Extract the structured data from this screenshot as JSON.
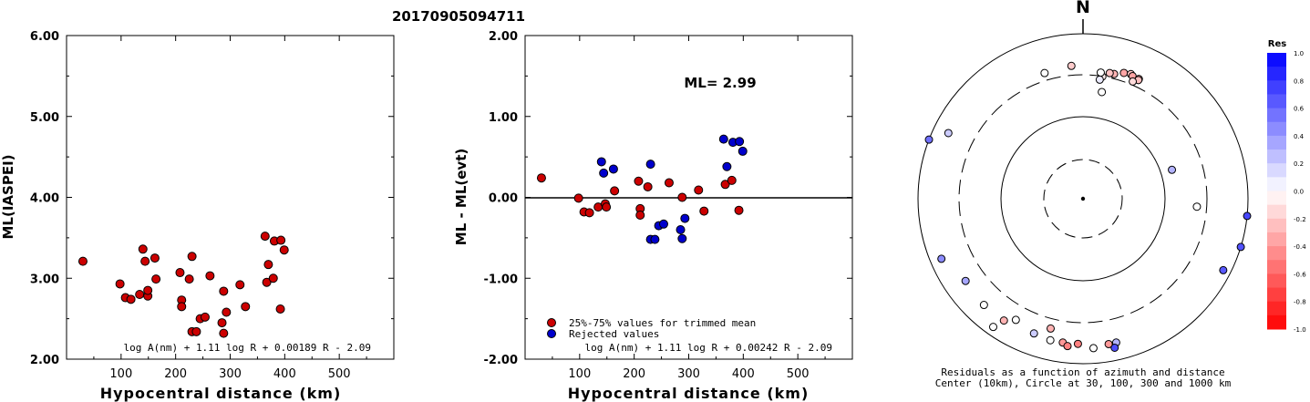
{
  "title": "20170905094711",
  "chart_data": [
    {
      "type": "scatter",
      "ylabel": "ML(IASPEI)",
      "xlabel": "Hypocentral distance (km)",
      "xlim": [
        0,
        600
      ],
      "ylim": [
        2.0,
        6.0
      ],
      "xticks": [
        "100",
        "200",
        "300",
        "400",
        "500"
      ],
      "yticks": [
        "2.00",
        "3.00",
        "4.00",
        "5.00",
        "6.00"
      ],
      "formula": "log A(nm) + 1.11 log R + 0.00189 R - 2.09",
      "points_color": "#cc0000",
      "points": [
        [
          30,
          3.21
        ],
        [
          98,
          2.93
        ],
        [
          108,
          2.76
        ],
        [
          118,
          2.74
        ],
        [
          134,
          2.8
        ],
        [
          140,
          3.36
        ],
        [
          144,
          3.21
        ],
        [
          149,
          2.78
        ],
        [
          149,
          2.85
        ],
        [
          162,
          3.25
        ],
        [
          164,
          2.99
        ],
        [
          208,
          3.07
        ],
        [
          211,
          2.73
        ],
        [
          211,
          2.65
        ],
        [
          225,
          2.99
        ],
        [
          230,
          3.27
        ],
        [
          230,
          2.34
        ],
        [
          238,
          2.34
        ],
        [
          245,
          2.5
        ],
        [
          254,
          2.52
        ],
        [
          263,
          3.03
        ],
        [
          285,
          2.45
        ],
        [
          288,
          2.84
        ],
        [
          288,
          2.32
        ],
        [
          293,
          2.58
        ],
        [
          318,
          2.92
        ],
        [
          328,
          2.65
        ],
        [
          364,
          3.52
        ],
        [
          367,
          2.95
        ],
        [
          370,
          3.17
        ],
        [
          379,
          3.0
        ],
        [
          381,
          3.46
        ],
        [
          392,
          2.62
        ],
        [
          393,
          3.47
        ],
        [
          399,
          3.35
        ]
      ]
    },
    {
      "type": "scatter",
      "ylabel": "ML - ML(evt)",
      "xlabel": "Hypocentral distance (km)",
      "xlim": [
        0,
        600
      ],
      "ylim": [
        -2.0,
        2.0
      ],
      "xticks": [
        "100",
        "200",
        "300",
        "400",
        "500"
      ],
      "yticks": [
        "-2.00",
        "-1.00",
        "0.00",
        "1.00",
        "2.00"
      ],
      "annotation": "ML= 2.99",
      "formula": "log A(nm) + 1.11 log R + 0.00242 R - 2.09",
      "legend": [
        {
          "label": "25%-75% values for trimmed mean",
          "color": "#cc0000"
        },
        {
          "label": "Rejected values",
          "color": "#0000cc"
        }
      ],
      "series": [
        {
          "name": "25%-75% values for trimmed mean",
          "color": "#cc0000",
          "points": [
            [
              30,
              0.24
            ],
            [
              98,
              -0.01
            ],
            [
              108,
              -0.18
            ],
            [
              118,
              -0.19
            ],
            [
              134,
              -0.12
            ],
            [
              147,
              -0.08
            ],
            [
              149,
              -0.12
            ],
            [
              164,
              0.08
            ],
            [
              208,
              0.2
            ],
            [
              211,
              -0.14
            ],
            [
              211,
              -0.22
            ],
            [
              225,
              0.13
            ],
            [
              264,
              0.18
            ],
            [
              288,
              0.0
            ],
            [
              318,
              0.09
            ],
            [
              328,
              -0.17
            ],
            [
              367,
              0.16
            ],
            [
              379,
              0.21
            ],
            [
              392,
              -0.16
            ]
          ]
        },
        {
          "name": "Rejected values",
          "color": "#0000cc",
          "points": [
            [
              140,
              0.44
            ],
            [
              144,
              0.3
            ],
            [
              162,
              0.35
            ],
            [
              230,
              0.41
            ],
            [
              230,
              -0.52
            ],
            [
              238,
              -0.52
            ],
            [
              245,
              -0.35
            ],
            [
              254,
              -0.33
            ],
            [
              285,
              -0.4
            ],
            [
              288,
              -0.51
            ],
            [
              293,
              -0.26
            ],
            [
              364,
              0.72
            ],
            [
              370,
              0.38
            ],
            [
              381,
              0.68
            ],
            [
              393,
              0.69
            ],
            [
              399,
              0.57
            ]
          ]
        }
      ]
    },
    {
      "type": "polar-scatter",
      "north_label": "N",
      "caption_lines": [
        "Residuals as a function of azimuth and distance",
        "Center (10km), Circle at 30, 100, 300 and 1000 km"
      ],
      "colorbar": {
        "title": "Res",
        "ticks": [
          "1.0",
          "0.8",
          "0.6",
          "0.4",
          "0.2",
          "0.0",
          "-0.2",
          "-0.4",
          "-0.6",
          "-0.8",
          "-1.0"
        ]
      },
      "points": [
        {
          "az": 9,
          "dist": 298,
          "res": -0.08
        },
        {
          "az": 8,
          "dist": 272,
          "res": 0.08
        },
        {
          "az": 10,
          "dist": 199,
          "res": 0.0
        },
        {
          "az": 18,
          "dist": 383,
          "res": -0.35
        },
        {
          "az": 21,
          "dist": 397,
          "res": -0.22
        },
        {
          "az": 22,
          "dist": 383,
          "res": -0.36
        },
        {
          "az": 25,
          "dist": 381,
          "res": -0.32
        },
        {
          "az": 25,
          "dist": 368,
          "res": -0.25
        },
        {
          "az": 14,
          "dist": 343,
          "res": -0.3
        },
        {
          "az": 23,
          "dist": 331,
          "res": -0.14
        },
        {
          "az": 8,
          "dist": 332,
          "res": 0.0
        },
        {
          "az": 12,
          "dist": 342,
          "res": -0.24
        },
        {
          "az": 355,
          "dist": 395,
          "res": -0.2
        },
        {
          "az": 343,
          "dist": 373,
          "res": 0.0
        },
        {
          "az": 72,
          "dist": 135,
          "res": 0.3
        },
        {
          "az": 94,
          "dist": 232,
          "res": 0.0
        },
        {
          "az": 96,
          "dist": 1000,
          "res": 0.72
        },
        {
          "az": 107,
          "dist": 1000,
          "res": 0.68
        },
        {
          "az": 117,
          "dist": 800,
          "res": 0.65
        },
        {
          "az": 291,
          "dist": 1000,
          "res": 0.56
        },
        {
          "az": 296,
          "dist": 640,
          "res": 0.2
        },
        {
          "az": 235,
          "dist": 530,
          "res": 0.35
        },
        {
          "az": 247,
          "dist": 720,
          "res": 0.45
        },
        {
          "az": 223,
          "dist": 560,
          "res": 0.0
        },
        {
          "az": 215,
          "dist": 780,
          "res": 0.0
        },
        {
          "az": 209,
          "dist": 460,
          "res": 0.0
        },
        {
          "az": 213,
          "dist": 560,
          "res": -0.3
        },
        {
          "az": 194,
          "dist": 400,
          "res": -0.3
        },
        {
          "az": 193,
          "dist": 560,
          "res": 0.0
        },
        {
          "az": 200,
          "dist": 530,
          "res": 0.2
        },
        {
          "az": 188,
          "dist": 560,
          "res": -0.4
        },
        {
          "az": 186,
          "dist": 610,
          "res": -0.5
        },
        {
          "az": 182,
          "dist": 560,
          "res": -0.5
        },
        {
          "az": 176,
          "dist": 640,
          "res": 0.0
        },
        {
          "az": 167,
          "dist": 600,
          "res": 0.3
        },
        {
          "az": 168,
          "dist": 690,
          "res": 0.7
        },
        {
          "az": 170,
          "dist": 600,
          "res": -0.4
        }
      ]
    }
  ]
}
